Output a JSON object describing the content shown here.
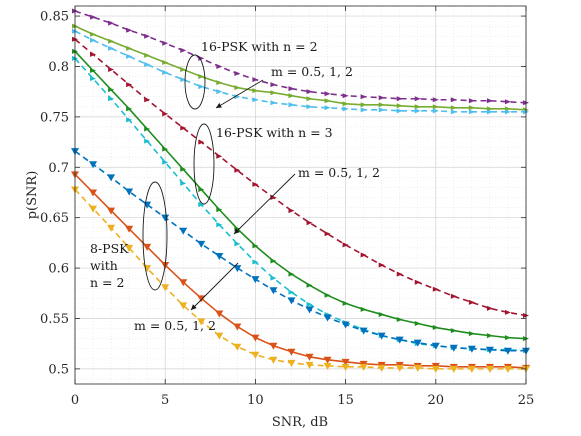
{
  "chart_data": {
    "type": "line",
    "xlabel": "SNR, dB",
    "ylabel": "p(SNR)",
    "xlim": [
      0,
      25
    ],
    "ylim": [
      0.485,
      0.86
    ],
    "xticks": [
      "0",
      "5",
      "10",
      "15",
      "20",
      "25"
    ],
    "yticks": [
      "0.5",
      "0.55",
      "0.6",
      "0.65",
      "0.7",
      "0.75",
      "0.8",
      "0.85"
    ],
    "grid": true,
    "x": [
      0,
      1,
      2,
      3,
      4,
      5,
      6,
      7,
      8,
      9,
      10,
      11,
      12,
      13,
      14,
      15,
      16,
      17,
      18,
      19,
      20,
      21,
      22,
      23,
      24,
      25
    ],
    "series": [
      {
        "color": "#7E2F8E",
        "dash": "dashed",
        "marker": "arrow",
        "values": [
          0.855,
          0.849,
          0.843,
          0.836,
          0.83,
          0.823,
          0.816,
          0.808,
          0.8,
          0.793,
          0.787,
          0.782,
          0.778,
          0.775,
          0.773,
          0.771,
          0.77,
          0.769,
          0.768,
          0.768,
          0.767,
          0.767,
          0.766,
          0.766,
          0.765,
          0.764
        ]
      },
      {
        "color": "#77AC30",
        "dash": "solid",
        "marker": "arrow",
        "values": [
          0.84,
          0.832,
          0.825,
          0.818,
          0.811,
          0.804,
          0.797,
          0.79,
          0.784,
          0.779,
          0.776,
          0.774,
          0.771,
          0.768,
          0.766,
          0.763,
          0.762,
          0.762,
          0.761,
          0.76,
          0.76,
          0.759,
          0.759,
          0.758,
          0.758,
          0.757
        ]
      },
      {
        "color": "#4DBEEE",
        "dash": "dashed",
        "marker": "arrow",
        "values": [
          0.835,
          0.826,
          0.818,
          0.81,
          0.802,
          0.794,
          0.787,
          0.78,
          0.775,
          0.77,
          0.767,
          0.764,
          0.762,
          0.76,
          0.759,
          0.758,
          0.757,
          0.757,
          0.756,
          0.756,
          0.756,
          0.755,
          0.755,
          0.755,
          0.755,
          0.755
        ]
      },
      {
        "color": "#A2142F",
        "dash": "dashed",
        "marker": "arrow",
        "values": [
          0.827,
          0.812,
          0.797,
          0.782,
          0.767,
          0.753,
          0.739,
          0.725,
          0.711,
          0.697,
          0.683,
          0.67,
          0.657,
          0.645,
          0.634,
          0.623,
          0.613,
          0.603,
          0.594,
          0.586,
          0.579,
          0.572,
          0.566,
          0.56,
          0.556,
          0.553
        ]
      },
      {
        "color": "#1E8C1E",
        "dash": "solid",
        "marker": "arrow",
        "values": [
          0.815,
          0.796,
          0.777,
          0.758,
          0.738,
          0.718,
          0.698,
          0.678,
          0.658,
          0.639,
          0.622,
          0.607,
          0.594,
          0.583,
          0.573,
          0.565,
          0.559,
          0.554,
          0.549,
          0.545,
          0.541,
          0.538,
          0.535,
          0.533,
          0.531,
          0.53
        ]
      },
      {
        "color": "#17BECF",
        "dash": "dashed",
        "marker": "arrow",
        "values": [
          0.808,
          0.788,
          0.768,
          0.747,
          0.726,
          0.705,
          0.684,
          0.663,
          0.643,
          0.624,
          0.606,
          0.59,
          0.576,
          0.564,
          0.554,
          0.546,
          0.539,
          0.533,
          0.529,
          0.525,
          0.523,
          0.521,
          0.52,
          0.519,
          0.519,
          0.518
        ]
      },
      {
        "color": "#0072BD",
        "dash": "dashed",
        "marker": "triangle",
        "values": [
          0.716,
          0.703,
          0.69,
          0.676,
          0.663,
          0.65,
          0.637,
          0.624,
          0.612,
          0.6,
          0.589,
          0.578,
          0.568,
          0.559,
          0.551,
          0.544,
          0.538,
          0.533,
          0.529,
          0.526,
          0.523,
          0.521,
          0.52,
          0.519,
          0.518,
          0.518
        ]
      },
      {
        "color": "#D95319",
        "dash": "solid",
        "marker": "triangle",
        "values": [
          0.693,
          0.675,
          0.657,
          0.639,
          0.621,
          0.603,
          0.586,
          0.57,
          0.555,
          0.542,
          0.531,
          0.523,
          0.517,
          0.512,
          0.509,
          0.507,
          0.505,
          0.504,
          0.504,
          0.503,
          0.503,
          0.502,
          0.502,
          0.502,
          0.502,
          0.501
        ]
      },
      {
        "color": "#EDB120",
        "dash": "dashed",
        "marker": "triangle",
        "values": [
          0.678,
          0.659,
          0.64,
          0.62,
          0.6,
          0.581,
          0.563,
          0.547,
          0.533,
          0.522,
          0.514,
          0.509,
          0.506,
          0.504,
          0.503,
          0.502,
          0.502,
          0.501,
          0.501,
          0.501,
          0.5,
          0.5,
          0.5,
          0.5,
          0.5,
          0.5
        ]
      }
    ],
    "annotations": [
      {
        "text": "16-PSK with n = 2"
      },
      {
        "text": "m = 0.5, 1, 2"
      },
      {
        "text": "16-PSK with n = 3"
      },
      {
        "text": "m = 0.5, 1, 2"
      },
      {
        "text": "8-PSK"
      },
      {
        "text": "with"
      },
      {
        "text": "n = 2"
      },
      {
        "text": "m = 0.5, 1, 2"
      }
    ]
  }
}
